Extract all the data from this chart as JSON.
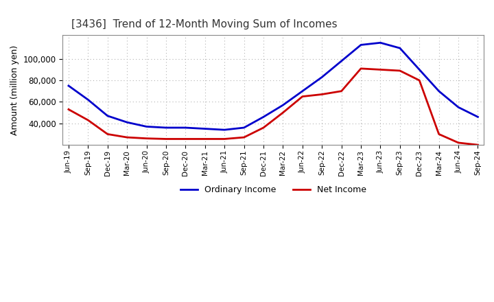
{
  "title": "[3436]  Trend of 12-Month Moving Sum of Incomes",
  "ylabel": "Amount (million yen)",
  "background_color": "#ffffff",
  "plot_bg_color": "#ffffff",
  "grid_color": "#b0b0b0",
  "ordinary_income_color": "#0000cc",
  "net_income_color": "#cc0000",
  "line_width": 2.0,
  "x_labels": [
    "Jun-19",
    "Sep-19",
    "Dec-19",
    "Mar-20",
    "Jun-20",
    "Sep-20",
    "Dec-20",
    "Mar-21",
    "Jun-21",
    "Sep-21",
    "Dec-21",
    "Mar-22",
    "Jun-22",
    "Sep-22",
    "Dec-22",
    "Mar-23",
    "Jun-23",
    "Sep-23",
    "Dec-23",
    "Mar-24",
    "Jun-24",
    "Sep-24"
  ],
  "ordinary_income": [
    75000,
    62000,
    47000,
    41000,
    37000,
    36000,
    36000,
    35000,
    34000,
    36000,
    46000,
    57000,
    70000,
    83000,
    98000,
    113000,
    115000,
    110000,
    90000,
    70000,
    55000,
    46000
  ],
  "net_income": [
    53000,
    43000,
    30000,
    27000,
    26000,
    25500,
    25500,
    25500,
    25500,
    27000,
    36000,
    50000,
    65000,
    67000,
    70000,
    91000,
    90000,
    89000,
    80000,
    30000,
    22000,
    20000
  ],
  "ylim_min": 20000,
  "ylim_max": 122000,
  "yticks": [
    40000,
    60000,
    80000,
    100000
  ],
  "legend_labels": [
    "Ordinary Income",
    "Net Income"
  ]
}
